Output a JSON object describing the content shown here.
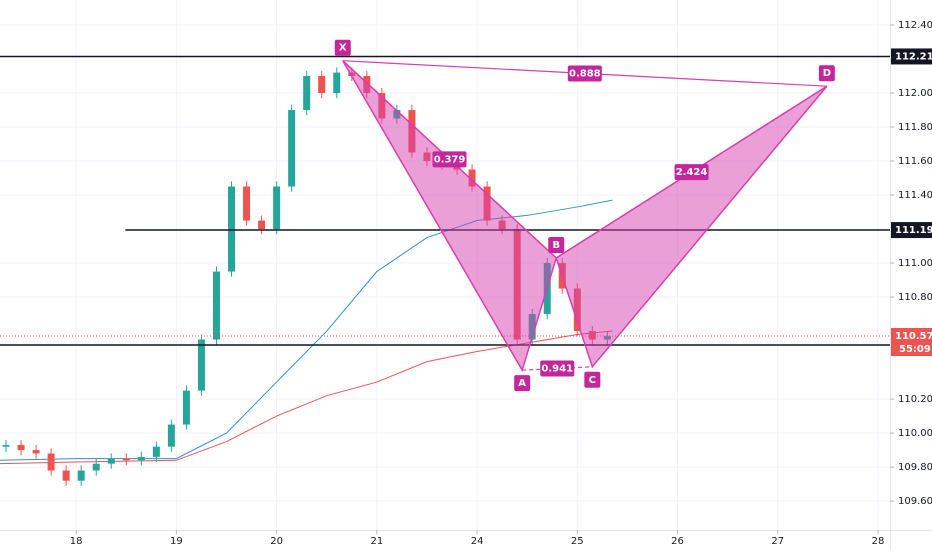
{
  "chart_data": {
    "type": "candlestick",
    "up_color": "#26a69a",
    "down_color": "#ef5350",
    "x": [
      -0.7,
      -0.55,
      -0.4,
      -0.25,
      -0.1,
      0.05,
      0.2,
      0.35,
      0.5,
      0.65,
      0.8,
      0.95,
      1.1,
      1.25,
      1.4,
      1.55,
      1.7,
      1.85,
      2.0,
      2.15,
      2.3,
      2.45,
      2.6,
      2.75,
      2.9,
      3.05,
      3.2,
      3.35,
      3.5,
      3.65,
      3.8,
      3.95,
      4.1,
      4.25,
      4.4,
      4.55,
      4.7,
      4.85,
      5.0,
      5.15,
      5.3
    ],
    "open": [
      109.92,
      109.93,
      109.9,
      109.88,
      109.78,
      109.72,
      109.78,
      109.82,
      109.85,
      109.84,
      109.86,
      109.92,
      110.05,
      110.25,
      110.55,
      110.95,
      111.45,
      111.25,
      111.2,
      111.45,
      111.9,
      112.1,
      112.0,
      112.12,
      112.1,
      112.0,
      111.85,
      111.9,
      111.65,
      111.6,
      111.58,
      111.55,
      111.45,
      111.25,
      111.2,
      110.55,
      110.7,
      111.0,
      110.85,
      110.6,
      110.55
    ],
    "high": [
      109.96,
      109.96,
      109.93,
      109.91,
      109.81,
      109.81,
      109.85,
      109.88,
      109.88,
      109.89,
      109.95,
      110.08,
      110.28,
      110.58,
      110.98,
      111.48,
      111.48,
      111.28,
      111.48,
      111.93,
      112.13,
      112.13,
      112.15,
      112.15,
      112.13,
      112.03,
      111.93,
      111.93,
      111.68,
      111.63,
      111.61,
      111.58,
      111.48,
      111.28,
      111.23,
      110.73,
      111.03,
      111.03,
      110.88,
      110.63,
      110.6
    ],
    "low": [
      109.89,
      109.87,
      109.85,
      109.75,
      109.69,
      109.69,
      109.75,
      109.79,
      109.81,
      109.81,
      109.83,
      109.89,
      110.02,
      110.22,
      110.52,
      110.92,
      111.22,
      111.17,
      111.17,
      111.42,
      111.87,
      111.97,
      111.97,
      112.07,
      111.97,
      111.82,
      111.82,
      111.62,
      111.57,
      111.55,
      111.52,
      111.42,
      111.22,
      111.17,
      110.52,
      110.52,
      110.67,
      110.82,
      110.57,
      110.52,
      110.52
    ],
    "close": [
      109.93,
      109.9,
      109.88,
      109.78,
      109.72,
      109.78,
      109.82,
      109.85,
      109.84,
      109.86,
      109.92,
      110.05,
      110.25,
      110.55,
      110.95,
      111.45,
      111.25,
      111.2,
      111.45,
      111.9,
      112.1,
      112.0,
      112.12,
      112.1,
      112.0,
      111.85,
      111.9,
      111.65,
      111.6,
      111.58,
      111.55,
      111.45,
      111.25,
      111.2,
      110.55,
      110.7,
      111.0,
      110.85,
      110.6,
      110.55,
      110.57
    ],
    "moving_averages": [
      {
        "color": "#2f8fd8",
        "x": [
          -0.76,
          0,
          1,
          1.5,
          2,
          2.5,
          3,
          3.5,
          4,
          4.5,
          5,
          5.35
        ],
        "values": [
          109.84,
          109.85,
          109.85,
          110.0,
          110.3,
          110.6,
          110.95,
          111.15,
          111.25,
          111.28,
          111.33,
          111.37
        ]
      },
      {
        "color": "#ef5350",
        "x": [
          -0.76,
          0,
          1,
          1.5,
          2,
          2.5,
          3,
          3.5,
          4,
          4.5,
          5,
          5.35
        ],
        "values": [
          109.82,
          109.83,
          109.84,
          109.95,
          110.1,
          110.22,
          110.3,
          110.42,
          110.48,
          110.53,
          110.58,
          110.6
        ]
      }
    ],
    "xlim": [
      -0.76,
      8.12
    ],
    "xticks": [
      {
        "value": 0,
        "label": "18"
      },
      {
        "value": 1,
        "label": "19"
      },
      {
        "value": 2,
        "label": "20"
      },
      {
        "value": 3,
        "label": "21"
      },
      {
        "value": 4,
        "label": "24"
      },
      {
        "value": 5,
        "label": "25"
      },
      {
        "value": 6,
        "label": "26"
      },
      {
        "value": 7,
        "label": "27"
      },
      {
        "value": 8,
        "label": "28"
      }
    ],
    "ylim": [
      109.43,
      112.547
    ],
    "yticks": [
      {
        "value": 112.4,
        "label": "112.400"
      },
      {
        "value": 112.0,
        "label": "112.000"
      },
      {
        "value": 111.8,
        "label": "111.800"
      },
      {
        "value": 111.6,
        "label": "111.600"
      },
      {
        "value": 111.4,
        "label": "111.400"
      },
      {
        "value": 111.0,
        "label": "111.000"
      },
      {
        "value": 110.8,
        "label": "110.800"
      },
      {
        "value": 110.2,
        "label": "110.200"
      },
      {
        "value": 110.0,
        "label": "110.000"
      },
      {
        "value": 109.8,
        "label": "109.800"
      },
      {
        "value": 109.6,
        "label": "109.600"
      }
    ],
    "grid": true,
    "levels": [
      {
        "value": 112.215,
        "x_start": -0.76
      },
      {
        "value": 111.194,
        "x_start": 0.49
      },
      {
        "value": 110.518,
        "x_start": -0.76
      }
    ],
    "current_price": {
      "value": 110.571,
      "countdown": "55:09",
      "color": "#ef5350"
    },
    "pattern": {
      "color": "#d63fb0",
      "points": [
        {
          "label": "X",
          "x": 2.66,
          "y": 112.19
        },
        {
          "label": "A",
          "x": 4.45,
          "y": 110.37
        },
        {
          "label": "B",
          "x": 4.79,
          "y": 111.03
        },
        {
          "label": "C",
          "x": 5.15,
          "y": 110.39
        },
        {
          "label": "D",
          "x": 7.49,
          "y": 112.04
        }
      ],
      "ratios": [
        0.888,
        0.379,
        2.424,
        0.941
      ]
    }
  }
}
